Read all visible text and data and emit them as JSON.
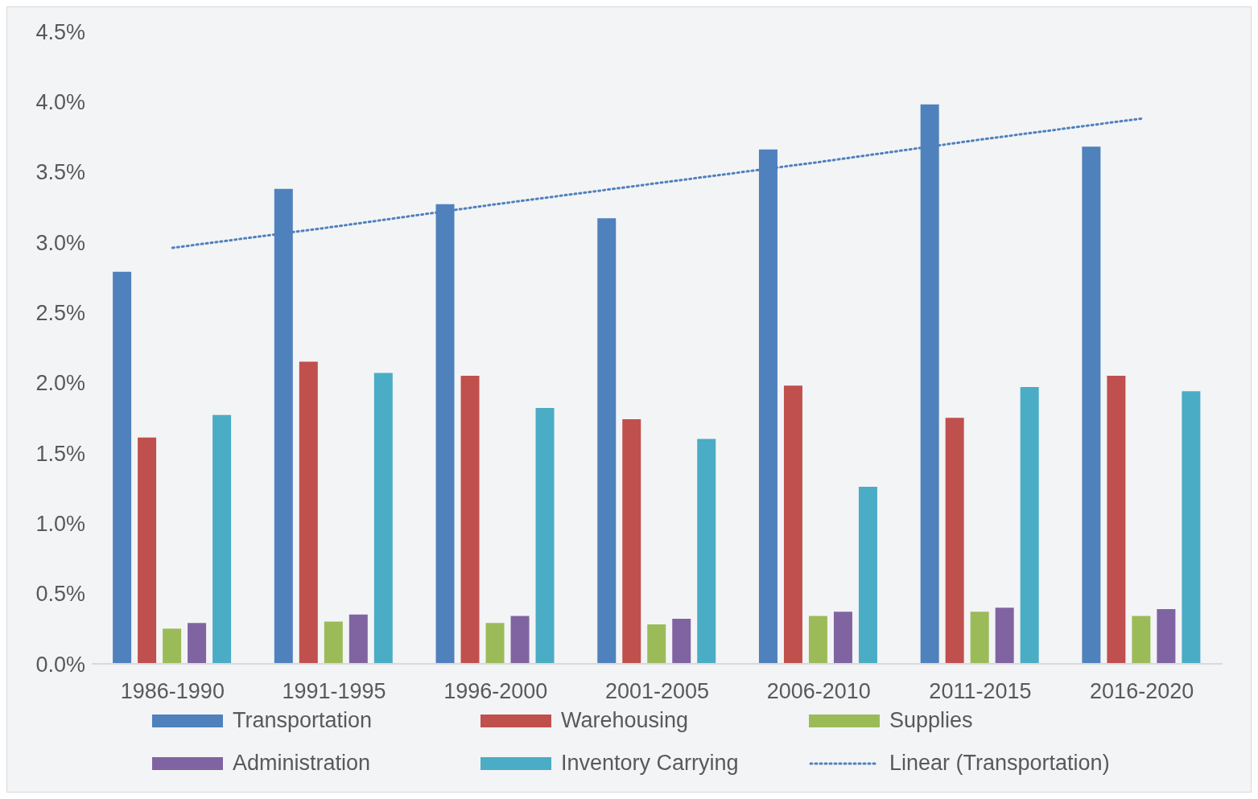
{
  "chart_data": {
    "type": "bar",
    "categories": [
      "1986-1990",
      "1991-1995",
      "1996-2000",
      "2001-2005",
      "2006-2010",
      "2011-2015",
      "2016-2020"
    ],
    "series": [
      {
        "name": "Transportation",
        "color": "#4f81bd",
        "values": [
          2.79,
          3.38,
          3.27,
          3.17,
          3.66,
          3.98,
          3.68
        ]
      },
      {
        "name": "Warehousing",
        "color": "#c0504d",
        "values": [
          1.61,
          2.15,
          2.05,
          1.74,
          1.98,
          1.75,
          2.05
        ]
      },
      {
        "name": "Supplies",
        "color": "#9bbb59",
        "values": [
          0.25,
          0.3,
          0.29,
          0.28,
          0.34,
          0.37,
          0.34
        ]
      },
      {
        "name": "Administration",
        "color": "#8064a2",
        "values": [
          0.29,
          0.35,
          0.34,
          0.32,
          0.37,
          0.4,
          0.39
        ]
      },
      {
        "name": "Inventory Carrying",
        "color": "#4bacc6",
        "values": [
          1.77,
          2.07,
          1.82,
          1.6,
          1.26,
          1.97,
          1.94
        ]
      },
      {
        "name": "Linear (Transportation)",
        "type": "line",
        "color": "#4f81bd",
        "line_style": "dotted",
        "marker": "none",
        "values": [
          2.96,
          3.11,
          3.27,
          3.42,
          3.57,
          3.73,
          3.88
        ]
      }
    ],
    "ylim": [
      0,
      4.5
    ],
    "yticks": [
      {
        "value": 0,
        "label": "0.0%"
      },
      {
        "value": 0.5,
        "label": "0.5%"
      },
      {
        "value": 1,
        "label": "1.0%"
      },
      {
        "value": 1.5,
        "label": "1.5%"
      },
      {
        "value": 2,
        "label": "2.0%"
      },
      {
        "value": 2.5,
        "label": "2.5%"
      },
      {
        "value": 3,
        "label": "3.0%"
      },
      {
        "value": 3.5,
        "label": "3.5%"
      },
      {
        "value": 4,
        "label": "4.0%"
      },
      {
        "value": 4.5,
        "label": "4.5%"
      }
    ],
    "grid": false,
    "legend": "bottom"
  }
}
